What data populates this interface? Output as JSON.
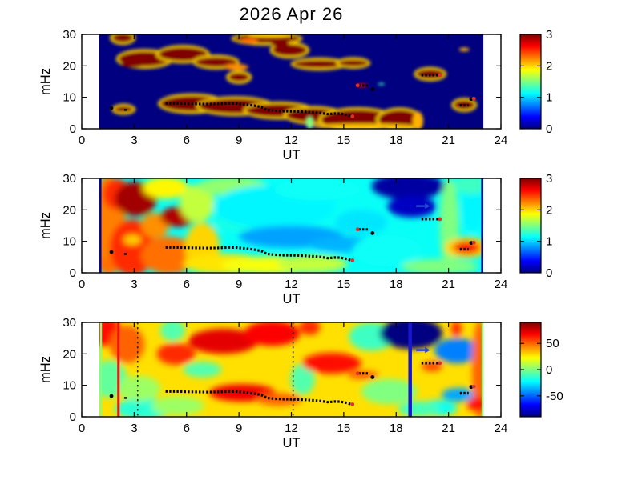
{
  "figure": {
    "title": "2026 Apr 26",
    "background": "#ffffff"
  },
  "shared_axes": {
    "xlabel": "UT",
    "ylabel": "mHz",
    "x_ticks": [
      0,
      3,
      6,
      9,
      12,
      15,
      18,
      21,
      24
    ],
    "y_ticks": [
      0,
      10,
      20,
      30
    ],
    "x_range": [
      0,
      24
    ],
    "y_range": [
      0,
      30
    ],
    "data_x_extent": [
      1,
      23
    ]
  },
  "overlay": {
    "description": "black dotted frequency-trace markers repeated on all three panels, red diamond endpoints, blue arrow marker",
    "main_trace": [
      [
        4.8,
        8.05
      ],
      [
        5.4,
        8.05
      ],
      [
        6.0,
        7.95
      ],
      [
        6.6,
        7.9
      ],
      [
        7.2,
        7.85
      ],
      [
        7.8,
        7.9
      ],
      [
        8.4,
        8.05
      ],
      [
        8.9,
        8.0
      ],
      [
        9.4,
        7.7
      ],
      [
        9.9,
        7.35
      ],
      [
        10.3,
        6.9
      ],
      [
        10.6,
        6.0
      ],
      [
        11.0,
        5.75
      ],
      [
        11.6,
        5.6
      ],
      [
        12.2,
        5.55
      ],
      [
        12.8,
        5.4
      ],
      [
        13.3,
        5.2
      ],
      [
        13.7,
        5.0
      ],
      [
        14.1,
        4.65
      ],
      [
        14.5,
        4.85
      ],
      [
        14.8,
        4.8
      ],
      [
        15.1,
        4.5
      ],
      [
        15.45,
        4.0
      ]
    ],
    "segments": [
      [
        [
          15.85,
          13.8
        ],
        [
          16.45,
          13.8
        ]
      ],
      [
        [
          19.45,
          17.05
        ],
        [
          20.45,
          17.05
        ]
      ],
      [
        [
          21.65,
          7.5
        ],
        [
          22.15,
          7.5
        ]
      ],
      [
        [
          2.5,
          6.3
        ],
        [
          2.5,
          5.6
        ]
      ]
    ],
    "points": [
      [
        1.7,
        6.6
      ],
      [
        16.65,
        12.6
      ],
      [
        22.3,
        9.5
      ]
    ],
    "red_points": [
      [
        15.8,
        13.8
      ],
      [
        15.5,
        3.95
      ],
      [
        20.5,
        17.05
      ],
      [
        22.45,
        9.6
      ]
    ],
    "blue_arrow": [
      19.6,
      21.2
    ],
    "marker_color": "#000000",
    "red_marker_color": "#e0302a",
    "arrow_color": "#2347d4"
  },
  "chart_data": [
    {
      "type": "heatmap",
      "panel": 1,
      "colormap": "jet",
      "xlabel": "UT",
      "ylabel": "mHz",
      "x_range": [
        0,
        24
      ],
      "y_range": [
        0,
        30
      ],
      "colorbar": {
        "range": [
          0,
          3
        ],
        "ticks": [
          0,
          1,
          2,
          3
        ]
      },
      "background_value": 0,
      "halo_value": 2.0,
      "blur": 2,
      "show_arrow": false,
      "blob_format": "[x_UT, y_mHz, rx_UT, ry_mHz, value, yellow_halo]",
      "blobs": [
        [
          2.35,
          28.9,
          0.6,
          1.5,
          3,
          1
        ],
        [
          3.6,
          22.2,
          1.5,
          2.4,
          3,
          1
        ],
        [
          2.95,
          20.5,
          0.7,
          1.0,
          3,
          0
        ],
        [
          5.8,
          23.7,
          1.4,
          2.2,
          3,
          1
        ],
        [
          7.7,
          21.2,
          1.2,
          1.6,
          3,
          1
        ],
        [
          8.85,
          19.6,
          0.7,
          1.0,
          2.2,
          0
        ],
        [
          9.0,
          16.4,
          0.6,
          1.4,
          3,
          1
        ],
        [
          10.6,
          28.7,
          1.9,
          1.5,
          3,
          1
        ],
        [
          10.8,
          29.7,
          1.3,
          0.7,
          2.05,
          0
        ],
        [
          9.6,
          27.9,
          0.5,
          0.9,
          2.3,
          0
        ],
        [
          11.9,
          25.0,
          1.0,
          1.9,
          3,
          1
        ],
        [
          11.35,
          27.1,
          0.5,
          1.1,
          3,
          0
        ],
        [
          13.6,
          20.6,
          1.5,
          1.3,
          3,
          1
        ],
        [
          15.55,
          20.9,
          0.85,
          1.1,
          3,
          1
        ],
        [
          16.05,
          13.8,
          0.3,
          0.5,
          2.6,
          0
        ],
        [
          17.15,
          14.2,
          0.2,
          0.35,
          1.3,
          0
        ],
        [
          19.95,
          17.4,
          0.8,
          1.5,
          3,
          1
        ],
        [
          21.9,
          25.2,
          0.3,
          0.6,
          2.1,
          0
        ],
        [
          21.9,
          7.6,
          0.6,
          1.5,
          3,
          1
        ],
        [
          2.4,
          6.2,
          0.55,
          1.0,
          3,
          1
        ],
        [
          6.3,
          8.0,
          1.8,
          2.5,
          3,
          1
        ],
        [
          8.8,
          7.2,
          2.1,
          2.4,
          3,
          1
        ],
        [
          11.3,
          5.8,
          1.9,
          2.1,
          3,
          1
        ],
        [
          13.3,
          4.3,
          1.6,
          2.2,
          3,
          1
        ],
        [
          15.8,
          2.9,
          2.1,
          3.2,
          3,
          1
        ],
        [
          18.2,
          2.9,
          1.2,
          3.1,
          3,
          1
        ],
        [
          16.2,
          0.7,
          3.0,
          0.9,
          2.05,
          0
        ],
        [
          19.25,
          2.5,
          0.3,
          3.0,
          2.1,
          0
        ],
        [
          13.05,
          1.8,
          0.2,
          2.0,
          1.5,
          0
        ]
      ],
      "lines": []
    },
    {
      "type": "heatmap",
      "panel": 2,
      "colormap": "jet",
      "xlabel": "UT",
      "ylabel": "mHz",
      "x_range": [
        0,
        24
      ],
      "y_range": [
        0,
        30
      ],
      "colorbar": {
        "range": [
          0,
          3
        ],
        "ticks": [
          0,
          1,
          2,
          3
        ]
      },
      "background_value": 1.15,
      "halo_value": 2.0,
      "blur": 4,
      "show_arrow": true,
      "blob_format": "[x_UT, y_mHz, rx_UT, ry_mHz, value, yellow_halo]",
      "blobs": [
        [
          1.5,
          15,
          1.0,
          16,
          2.25,
          0
        ],
        [
          2.0,
          25,
          0.8,
          5,
          2.5,
          0
        ],
        [
          1.6,
          2.5,
          0.8,
          2.5,
          2.3,
          0
        ],
        [
          3.1,
          23.5,
          1.2,
          5.5,
          2.9,
          0
        ],
        [
          2.9,
          8,
          1.3,
          9,
          2.5,
          0
        ],
        [
          2.9,
          10.5,
          0.5,
          1.5,
          2.0,
          0
        ],
        [
          4.2,
          15,
          0.8,
          4,
          2.2,
          0
        ],
        [
          5.5,
          17.8,
          1.0,
          3.2,
          2.85,
          0
        ],
        [
          5.0,
          5.5,
          1.6,
          6,
          2.3,
          0
        ],
        [
          4.8,
          27,
          1.3,
          3.5,
          1.9,
          0
        ],
        [
          6.6,
          22,
          1.0,
          6,
          1.7,
          0
        ],
        [
          6.9,
          8,
          1.0,
          8,
          2.0,
          0
        ],
        [
          8.2,
          2.8,
          2.4,
          3.2,
          1.95,
          0
        ],
        [
          10.8,
          2.4,
          2.8,
          2.8,
          1.85,
          0
        ],
        [
          13.2,
          2.8,
          2.0,
          2.8,
          1.7,
          0
        ],
        [
          8.6,
          27.5,
          2.0,
          3.0,
          1.55,
          0
        ],
        [
          9.5,
          16,
          2.0,
          3.0,
          1.2,
          0
        ],
        [
          11,
          21,
          3.5,
          7,
          1.1,
          0
        ],
        [
          12,
          11.5,
          3.0,
          3.5,
          0.85,
          0
        ],
        [
          15,
          9,
          2.0,
          2.5,
          0.9,
          0
        ],
        [
          13.5,
          26.5,
          2.5,
          3.5,
          1.15,
          0
        ],
        [
          16,
          16,
          1.5,
          4,
          1.05,
          0
        ],
        [
          18.7,
          27.5,
          2.1,
          4.2,
          0.1,
          0
        ],
        [
          18.9,
          21,
          1.4,
          3.4,
          0.2,
          0
        ],
        [
          17.5,
          7,
          2.0,
          5,
          1.15,
          0
        ],
        [
          21.05,
          15,
          0.55,
          15,
          1.5,
          0
        ],
        [
          22.05,
          8,
          1.3,
          3.3,
          2.0,
          0
        ],
        [
          22.05,
          8,
          0.8,
          2.0,
          2.65,
          0
        ],
        [
          22.4,
          20,
          0.7,
          7,
          1.1,
          0
        ],
        [
          20.5,
          2,
          2.2,
          2.4,
          1.5,
          0
        ],
        [
          22.3,
          28,
          1.0,
          3,
          1.3,
          0
        ]
      ],
      "lines": [
        {
          "x": 1.07,
          "w": 2.5,
          "value": 0.05,
          "style": "solid"
        },
        {
          "x": 22.93,
          "w": 2.5,
          "value": 0.05,
          "style": "solid"
        }
      ]
    },
    {
      "type": "heatmap",
      "panel": 3,
      "colormap": "jet",
      "xlabel": "UT",
      "ylabel": "mHz",
      "x_range": [
        0,
        24
      ],
      "y_range": [
        0,
        30
      ],
      "colorbar": {
        "range": [
          -90,
          90
        ],
        "ticks": [
          -50,
          0,
          50
        ]
      },
      "background_value": 28,
      "halo_value": 50,
      "blur": 4,
      "show_arrow": true,
      "blob_format": "[x_UT, y_mHz, rx_UT, ry_mHz, value, yellow_halo]",
      "blobs": [
        [
          1.3,
          27,
          1.0,
          4.5,
          65,
          0
        ],
        [
          2.6,
          23,
          1.0,
          6,
          50,
          0
        ],
        [
          1.6,
          12,
          1.0,
          6,
          -5,
          0
        ],
        [
          3.5,
          2.5,
          1.6,
          3.5,
          -15,
          0
        ],
        [
          3.3,
          9,
          1.2,
          4,
          5,
          0
        ],
        [
          5.5,
          3.5,
          1.5,
          3,
          5,
          0
        ],
        [
          5.2,
          27.5,
          0.7,
          3.5,
          -8,
          0
        ],
        [
          5.4,
          20,
          1.1,
          3.5,
          60,
          0
        ],
        [
          8.1,
          24,
          2.0,
          4,
          72,
          0
        ],
        [
          10.9,
          26.5,
          1.6,
          4,
          68,
          0
        ],
        [
          13.05,
          28.5,
          0.6,
          2.5,
          60,
          0
        ],
        [
          6.9,
          15,
          1.1,
          2.5,
          -8,
          0
        ],
        [
          9.2,
          7.6,
          1.9,
          2.8,
          70,
          0
        ],
        [
          11.3,
          5.5,
          1.3,
          2.0,
          50,
          0
        ],
        [
          12.65,
          12,
          0.7,
          5,
          -8,
          0
        ],
        [
          14.3,
          17,
          1.7,
          3.3,
          65,
          0
        ],
        [
          16.1,
          13.3,
          0.9,
          1.4,
          50,
          0
        ],
        [
          16.6,
          25.5,
          1.3,
          4.5,
          -12,
          0
        ],
        [
          17.6,
          8,
          1.6,
          4,
          0,
          0
        ],
        [
          18.85,
          26.5,
          1.8,
          5.0,
          -90,
          0
        ],
        [
          20.05,
          16,
          0.6,
          1.6,
          55,
          0
        ],
        [
          21.5,
          21,
          1.3,
          4,
          -45,
          0
        ],
        [
          21.6,
          7,
          1.0,
          2.2,
          -38,
          0
        ],
        [
          21.45,
          28,
          0.3,
          2.5,
          60,
          0
        ],
        [
          20.4,
          2.8,
          1.1,
          2.5,
          -20,
          0
        ],
        [
          22.8,
          15,
          0.45,
          16,
          50,
          0
        ],
        [
          22.65,
          4,
          0.6,
          2.2,
          65,
          0
        ],
        [
          19.3,
          2.5,
          1.2,
          2.5,
          -10,
          0
        ]
      ],
      "lines": [
        {
          "x": 1.1,
          "w": 2.5,
          "value": 0,
          "style": "solid"
        },
        {
          "x": 2.1,
          "w": 3,
          "color": "#f21111",
          "style": "solid"
        },
        {
          "x": 3.2,
          "w": 1.6,
          "color": "#2b2016",
          "style": "dotted"
        },
        {
          "x": 12.1,
          "w": 1.6,
          "color": "#2b2016",
          "style": "dotted"
        },
        {
          "x": 18.8,
          "w": 4.5,
          "color": "#1717cd",
          "style": "solid"
        },
        {
          "x": 22.95,
          "w": 2.5,
          "value": 0,
          "style": "solid"
        }
      ]
    }
  ]
}
